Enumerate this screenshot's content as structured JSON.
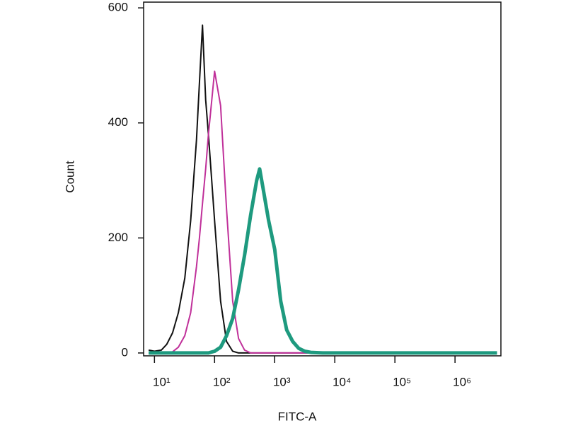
{
  "chart_data": {
    "type": "line",
    "x_label": "FITC-A",
    "y_label": "Count",
    "x": [
      8,
      10,
      13,
      16,
      20,
      25,
      32,
      40,
      50,
      56,
      63,
      71,
      79,
      100,
      126,
      158,
      200,
      251,
      316,
      398,
      501,
      562,
      631,
      794,
      1000,
      1259,
      1585,
      1995,
      2512,
      3162,
      3981,
      6310,
      10000,
      100000,
      5000000
    ],
    "series": [
      {
        "color": "#111111",
        "width": 2,
        "values": [
          5,
          3,
          5,
          15,
          35,
          70,
          130,
          230,
          370,
          470,
          570,
          440,
          380,
          230,
          90,
          20,
          3,
          0,
          0,
          0,
          0,
          0,
          0,
          0,
          0,
          0,
          0,
          0,
          0,
          0,
          0,
          0,
          0,
          0,
          0
        ]
      },
      {
        "color": "#c0309a",
        "width": 2,
        "values": [
          0,
          0,
          0,
          0,
          2,
          10,
          30,
          70,
          150,
          200,
          260,
          320,
          380,
          490,
          430,
          250,
          90,
          25,
          5,
          0,
          0,
          0,
          0,
          0,
          0,
          0,
          0,
          0,
          0,
          0,
          0,
          0,
          0,
          0,
          0
        ]
      },
      {
        "color": "#1e9a7f",
        "width": 5,
        "values": [
          0,
          0,
          0,
          0,
          0,
          0,
          0,
          0,
          0,
          0,
          0,
          0,
          0,
          3,
          10,
          30,
          60,
          110,
          170,
          240,
          300,
          320,
          290,
          230,
          180,
          90,
          40,
          20,
          8,
          3,
          1,
          0,
          0,
          0,
          0
        ]
      }
    ],
    "log_x": true,
    "xlim": [
      6.6,
      5800000
    ],
    "xticks": [
      {
        "value": 10,
        "label": "10¹"
      },
      {
        "value": 100,
        "label": "10²"
      },
      {
        "value": 1000,
        "label": "10³"
      },
      {
        "value": 10000,
        "label": "10⁴"
      },
      {
        "value": 100000,
        "label": "10⁵"
      },
      {
        "value": 1000000,
        "label": "10⁶"
      }
    ],
    "ylim": [
      -5,
      610
    ],
    "yticks": [
      0,
      200,
      400,
      600
    ]
  }
}
